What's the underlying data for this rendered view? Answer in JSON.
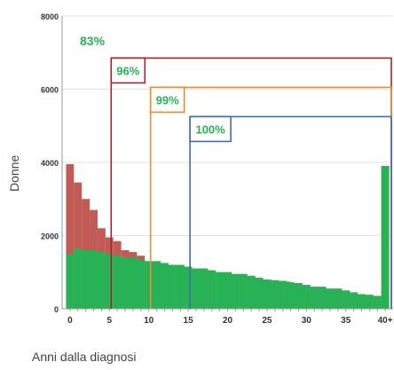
{
  "chart_data": {
    "type": "bar",
    "xlabel": "Anni dalla diagnosi",
    "ylabel": "Donne",
    "ylim": [
      0,
      8000
    ],
    "xlim": [
      -1,
      41
    ],
    "yticks": [
      0,
      2000,
      4000,
      6000,
      8000
    ],
    "ytick_labels": [
      "0",
      "2000",
      "4000",
      "6000",
      "8000"
    ],
    "xticks": [
      0,
      5,
      10,
      15,
      20,
      25,
      30,
      35,
      40
    ],
    "xtick_labels": [
      "0",
      "5",
      "10",
      "15",
      "20",
      "25",
      "30",
      "35",
      "40+"
    ],
    "grid": true,
    "bar_years": [
      0,
      1,
      2,
      3,
      4,
      5,
      6,
      7,
      8,
      9,
      10,
      11,
      12,
      13,
      14,
      15,
      16,
      17,
      18,
      19,
      20,
      21,
      22,
      23,
      24,
      25,
      26,
      27,
      27.5,
      28,
      29,
      30,
      31,
      32,
      33,
      34,
      35,
      36,
      37,
      38,
      39,
      40
    ],
    "series": [
      {
        "color": "#27b256",
        "values": [
          1500,
          1650,
          1600,
          1600,
          1550,
          1500,
          1450,
          1400,
          1400,
          1350,
          1300,
          1300,
          1250,
          1200,
          1200,
          1150,
          1100,
          1100,
          1050,
          1000,
          1000,
          950,
          950,
          900,
          850,
          800,
          780,
          760,
          740,
          720,
          700,
          650,
          600,
          600,
          550,
          550,
          500,
          450,
          400,
          380,
          350,
          3900
        ]
      },
      {
        "color": "#c25b56",
        "values": [
          3950,
          3450,
          3000,
          2700,
          2200,
          1950,
          1850,
          1600,
          1550,
          1450,
          1300,
          1300,
          1250,
          1200,
          1200,
          1150,
          1100,
          1100,
          1050,
          1000,
          1000,
          950,
          950,
          900,
          850,
          800,
          780,
          760,
          740,
          720,
          700,
          650,
          600,
          600,
          550,
          550,
          500,
          450,
          400,
          380,
          350,
          3900
        ]
      }
    ],
    "annotations": [
      {
        "label": "83%",
        "x_start": -1,
        "x_end": 41,
        "color": "#27b256",
        "framed": false
      },
      {
        "label": "96%",
        "x_start": 5,
        "x_end": 41,
        "color": "#9b2a2a",
        "framed": true,
        "y_top": 6850
      },
      {
        "label": "99%",
        "x_start": 10,
        "x_end": 41,
        "color": "#ee8b33",
        "framed": true,
        "y_top": 6050
      },
      {
        "label": "100%",
        "x_start": 15,
        "x_end": 41,
        "color": "#3d6fb0",
        "framed": true,
        "y_top": 5250
      }
    ]
  }
}
